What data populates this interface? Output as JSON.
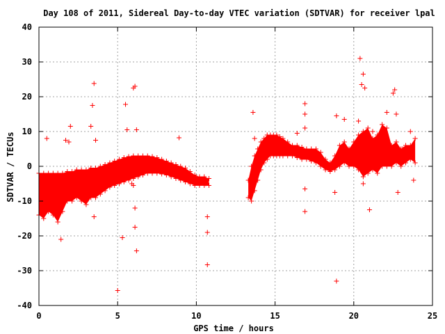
{
  "chart_data": {
    "type": "scatter",
    "title": "Day 108 of 2011, Sidereal Day-to-day VTEC variation (SDTVAR) for receiver lpal",
    "xlabel": "GPS time / hours",
    "ylabel": "SDTVAR / TECUs",
    "xlim": [
      0,
      25
    ],
    "ylim": [
      -40,
      40
    ],
    "x_ticks": [
      0,
      5,
      10,
      15,
      20,
      25
    ],
    "y_ticks": [
      -40,
      -30,
      -20,
      -10,
      0,
      10,
      20,
      30,
      40
    ],
    "x_tick_labels": [
      "0",
      "5",
      "10",
      "15",
      "20",
      "25"
    ],
    "y_tick_labels": [
      "-40",
      "-30",
      "-20",
      "-10",
      "0",
      "10",
      "20",
      "30",
      "40"
    ],
    "grid": true,
    "marker": "+",
    "color": "#ff0000",
    "dense_band": [
      {
        "x": 0.0,
        "low": -14,
        "high": -2
      },
      {
        "x": 0.3,
        "low": -15,
        "high": -2
      },
      {
        "x": 0.6,
        "low": -13,
        "high": -2
      },
      {
        "x": 0.9,
        "low": -14,
        "high": -2
      },
      {
        "x": 1.2,
        "low": -16,
        "high": -2
      },
      {
        "x": 1.5,
        "low": -13,
        "high": -2
      },
      {
        "x": 1.8,
        "low": -10,
        "high": -1.5
      },
      {
        "x": 2.1,
        "low": -10,
        "high": -1.5
      },
      {
        "x": 2.4,
        "low": -9,
        "high": -1
      },
      {
        "x": 2.7,
        "low": -10,
        "high": -1
      },
      {
        "x": 3.0,
        "low": -11,
        "high": -1
      },
      {
        "x": 3.3,
        "low": -9,
        "high": -0.5
      },
      {
        "x": 3.6,
        "low": -9,
        "high": -0.5
      },
      {
        "x": 3.9,
        "low": -8,
        "high": 0
      },
      {
        "x": 4.2,
        "low": -7,
        "high": 0.5
      },
      {
        "x": 4.5,
        "low": -6,
        "high": 1
      },
      {
        "x": 4.8,
        "low": -5.5,
        "high": 1.5
      },
      {
        "x": 5.1,
        "low": -5,
        "high": 2
      },
      {
        "x": 5.4,
        "low": -4.5,
        "high": 2.5
      },
      {
        "x": 5.7,
        "low": -4,
        "high": 2.8
      },
      {
        "x": 6.0,
        "low": -3.5,
        "high": 3
      },
      {
        "x": 6.3,
        "low": -3,
        "high": 3
      },
      {
        "x": 6.6,
        "low": -2.5,
        "high": 3
      },
      {
        "x": 6.9,
        "low": -2,
        "high": 3
      },
      {
        "x": 7.2,
        "low": -2,
        "high": 2.8
      },
      {
        "x": 7.5,
        "low": -2,
        "high": 2.5
      },
      {
        "x": 7.8,
        "low": -2.2,
        "high": 2
      },
      {
        "x": 8.1,
        "low": -2.5,
        "high": 1.5
      },
      {
        "x": 8.4,
        "low": -3,
        "high": 1
      },
      {
        "x": 8.7,
        "low": -3.5,
        "high": 0.5
      },
      {
        "x": 9.0,
        "low": -4,
        "high": 0
      },
      {
        "x": 9.3,
        "low": -4.5,
        "high": -0.5
      },
      {
        "x": 9.6,
        "low": -5,
        "high": -1.5
      },
      {
        "x": 9.9,
        "low": -5.5,
        "high": -2.5
      },
      {
        "x": 10.2,
        "low": -5.5,
        "high": -3
      },
      {
        "x": 10.5,
        "low": -5.5,
        "high": -3
      },
      {
        "x": 10.8,
        "low": -5.5,
        "high": -3.5
      },
      {
        "x": 13.3,
        "low": -9,
        "high": -4
      },
      {
        "x": 13.5,
        "low": -10,
        "high": 0
      },
      {
        "x": 13.7,
        "low": -7,
        "high": 3
      },
      {
        "x": 13.9,
        "low": -4,
        "high": 5
      },
      {
        "x": 14.1,
        "low": -1,
        "high": 7
      },
      {
        "x": 14.3,
        "low": 1,
        "high": 8
      },
      {
        "x": 14.5,
        "low": 2,
        "high": 9
      },
      {
        "x": 14.7,
        "low": 3,
        "high": 9
      },
      {
        "x": 14.9,
        "low": 3,
        "high": 9
      },
      {
        "x": 15.1,
        "low": 3,
        "high": 9
      },
      {
        "x": 15.3,
        "low": 3,
        "high": 8.5
      },
      {
        "x": 15.5,
        "low": 3,
        "high": 8
      },
      {
        "x": 15.8,
        "low": 3,
        "high": 7
      },
      {
        "x": 16.1,
        "low": 3,
        "high": 6
      },
      {
        "x": 16.4,
        "low": 2.5,
        "high": 6
      },
      {
        "x": 16.7,
        "low": 2,
        "high": 5.5
      },
      {
        "x": 17.0,
        "low": 2,
        "high": 5
      },
      {
        "x": 17.3,
        "low": 1.5,
        "high": 5
      },
      {
        "x": 17.6,
        "low": 1,
        "high": 5
      },
      {
        "x": 17.9,
        "low": 0,
        "high": 4
      },
      {
        "x": 18.2,
        "low": -1,
        "high": 2
      },
      {
        "x": 18.5,
        "low": -1.5,
        "high": 1
      },
      {
        "x": 18.8,
        "low": -1,
        "high": 3
      },
      {
        "x": 19.1,
        "low": 0,
        "high": 6
      },
      {
        "x": 19.4,
        "low": 1,
        "high": 7
      },
      {
        "x": 19.7,
        "low": 0,
        "high": 5
      },
      {
        "x": 20.0,
        "low": 0,
        "high": 7
      },
      {
        "x": 20.3,
        "low": -1,
        "high": 9
      },
      {
        "x": 20.6,
        "low": -3,
        "high": 10
      },
      {
        "x": 20.9,
        "low": -2,
        "high": 11
      },
      {
        "x": 21.2,
        "low": -1,
        "high": 8
      },
      {
        "x": 21.5,
        "low": -2,
        "high": 9
      },
      {
        "x": 21.8,
        "low": 0,
        "high": 12
      },
      {
        "x": 22.1,
        "low": 0,
        "high": 11
      },
      {
        "x": 22.4,
        "low": 0,
        "high": 6
      },
      {
        "x": 22.7,
        "low": 1,
        "high": 7
      },
      {
        "x": 23.0,
        "low": 0,
        "high": 5
      },
      {
        "x": 23.3,
        "low": 1,
        "high": 6
      },
      {
        "x": 23.6,
        "low": 2,
        "high": 6
      },
      {
        "x": 23.9,
        "low": 1,
        "high": 8
      }
    ],
    "outliers": [
      [
        0.5,
        8
      ],
      [
        1.7,
        7.5
      ],
      [
        2.0,
        11.5
      ],
      [
        1.9,
        7
      ],
      [
        1.4,
        -21
      ],
      [
        3.4,
        17.5
      ],
      [
        3.5,
        23.8
      ],
      [
        3.3,
        11.5
      ],
      [
        3.6,
        7.5
      ],
      [
        3.5,
        -14.5
      ],
      [
        5.0,
        -35.7
      ],
      [
        5.5,
        17.8
      ],
      [
        5.3,
        -20.5
      ],
      [
        5.6,
        10.5
      ],
      [
        5.9,
        -5
      ],
      [
        6.0,
        22.5
      ],
      [
        6.1,
        23
      ],
      [
        6.2,
        10.5
      ],
      [
        6.1,
        -12
      ],
      [
        6.1,
        -17.5
      ],
      [
        6.2,
        -24.3
      ],
      [
        6.0,
        -5.5
      ],
      [
        8.9,
        8.2
      ],
      [
        8.7,
        0
      ],
      [
        9.3,
        -3
      ],
      [
        10.7,
        -14.5
      ],
      [
        10.7,
        -19
      ],
      [
        10.7,
        -28.3
      ],
      [
        10.6,
        -5
      ],
      [
        13.6,
        15.5
      ],
      [
        13.7,
        8
      ],
      [
        16.9,
        18
      ],
      [
        16.9,
        15
      ],
      [
        16.9,
        11
      ],
      [
        16.9,
        -6.5
      ],
      [
        16.9,
        -13
      ],
      [
        16.4,
        9.5
      ],
      [
        18.9,
        -33
      ],
      [
        18.9,
        14.5
      ],
      [
        18.8,
        -7.5
      ],
      [
        19.4,
        13.5
      ],
      [
        20.4,
        31
      ],
      [
        20.5,
        23.5
      ],
      [
        20.6,
        26.5
      ],
      [
        20.7,
        22.5
      ],
      [
        20.3,
        13
      ],
      [
        21.0,
        -12.5
      ],
      [
        20.6,
        -5
      ],
      [
        21.2,
        10
      ],
      [
        22.1,
        15.5
      ],
      [
        22.6,
        22
      ],
      [
        22.5,
        21
      ],
      [
        22.7,
        15
      ],
      [
        22.8,
        -7.5
      ],
      [
        23.1,
        5
      ],
      [
        23.6,
        10
      ],
      [
        23.8,
        -4
      ]
    ]
  }
}
